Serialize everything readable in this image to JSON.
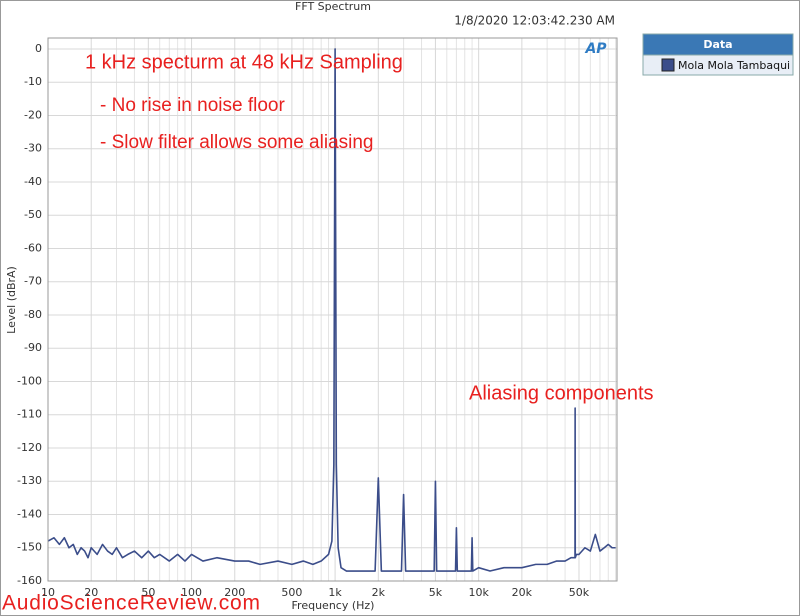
{
  "chart_data": {
    "type": "line",
    "title": "FFT Spectrum",
    "timestamp": "1/8/2020 12:03:42.230 AM",
    "logo": "AP",
    "x_label": "Frequency (Hz)",
    "y_label": "Level (dBrA)",
    "log_x": true,
    "grid": true,
    "xlim": [
      10,
      92000
    ],
    "ylim": [
      -160,
      3.3
    ],
    "xticks": [
      10,
      20,
      50,
      100,
      200,
      500,
      {
        "value": 1000,
        "label": "1k"
      },
      {
        "value": 2000,
        "label": "2k"
      },
      {
        "value": 5000,
        "label": "5k"
      },
      {
        "value": 10000,
        "label": "10k"
      },
      {
        "value": 20000,
        "label": "20k"
      },
      {
        "value": 50000,
        "label": "50k"
      }
    ],
    "x_minor_ticks": [
      30,
      40,
      60,
      70,
      80,
      90,
      300,
      400,
      600,
      700,
      800,
      900,
      3000,
      4000,
      6000,
      7000,
      8000,
      9000,
      30000,
      40000,
      60000,
      70000,
      80000,
      90000
    ],
    "yticks": [
      0,
      -10,
      -20,
      -30,
      -40,
      -50,
      -60,
      -70,
      -80,
      -90,
      -100,
      -110,
      -120,
      -130,
      -140,
      -150,
      -160
    ],
    "legend_title": "Data",
    "x": [
      10,
      11,
      12,
      13,
      14,
      15,
      16,
      17,
      18,
      19,
      20,
      22,
      24,
      26,
      28,
      30,
      33,
      36,
      40,
      45,
      50,
      55,
      60,
      70,
      80,
      90,
      100,
      120,
      150,
      200,
      250,
      300,
      400,
      500,
      600,
      700,
      800,
      900,
      950,
      980,
      1000,
      1020,
      1050,
      1100,
      1200,
      1500,
      1900,
      2000,
      2100,
      2500,
      2900,
      3000,
      3100,
      3500,
      4000,
      4900,
      5000,
      5100,
      6000,
      6900,
      7000,
      7100,
      8000,
      8900,
      9000,
      9100,
      10000,
      12000,
      15000,
      20000,
      25000,
      30000,
      35000,
      40000,
      44000,
      46000,
      46900,
      47000,
      47100,
      48000,
      50000,
      55000,
      60000,
      65000,
      70000,
      75000,
      80000,
      85000,
      90000
    ],
    "series": [
      {
        "name": "Mola Mola Tambaqui",
        "color": "#3b4d8a",
        "values": [
          -148,
          -147,
          -149,
          -147,
          -150,
          -149,
          -152,
          -150,
          -151,
          -153,
          -150,
          -152,
          -149,
          -151,
          -152,
          -150,
          -153,
          -152,
          -151,
          -153,
          -151,
          -153,
          -152,
          -154,
          -152,
          -154,
          -152,
          -154,
          -153,
          -154,
          -154,
          -155,
          -154,
          -155,
          -154,
          -155,
          -154,
          -152,
          -148,
          -125,
          0,
          -125,
          -150,
          -156,
          -157,
          -157,
          -157,
          -129,
          -157,
          -157,
          -157,
          -134,
          -157,
          -157,
          -157,
          -157,
          -130,
          -157,
          -157,
          -157,
          -144,
          -157,
          -157,
          -157,
          -147,
          -157,
          -156,
          -157,
          -156,
          -156,
          -155,
          -155,
          -154,
          -154,
          -153,
          -153,
          -153,
          -108,
          -153,
          -152,
          -152,
          -150,
          -151,
          -146,
          -151,
          -150,
          -149,
          -150,
          -150
        ]
      }
    ],
    "annotations": [
      "1 kHz specturm at 48 kHz Sampling",
      "- No rise in noise floor",
      "- Slow filter allows some aliasing",
      "Aliasing components"
    ],
    "watermark": "AudioScienceReview.com"
  }
}
